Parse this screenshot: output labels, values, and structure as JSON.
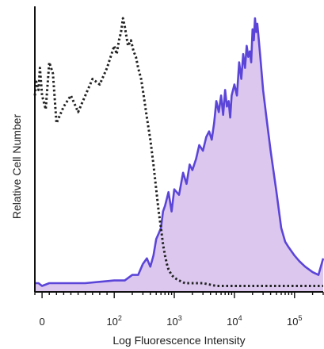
{
  "chart_data": {
    "type": "area",
    "title": "",
    "xlabel": "Log Fluorescence Intensity",
    "ylabel": "Relative Cell Number",
    "x_scale": "biexponential",
    "xlim": [
      -10,
      300000
    ],
    "ylim": [
      0,
      1
    ],
    "x_tick_labels": [
      {
        "label": "0",
        "value": 0
      },
      {
        "label": "10",
        "sup": "2",
        "value": 100
      },
      {
        "label": "10",
        "sup": "3",
        "value": 1000
      },
      {
        "label": "10",
        "sup": "4",
        "value": 10000
      },
      {
        "label": "10",
        "sup": "5",
        "value": 100000
      }
    ],
    "grid": false,
    "legend": "none",
    "series": [
      {
        "style": "solid",
        "fill": true,
        "color": "#5b45d8",
        "fill_color": "#dcc8ef",
        "x": [
          -10,
          -5,
          0,
          10,
          30,
          60,
          100,
          150,
          200,
          250,
          300,
          350,
          400,
          450,
          500,
          550,
          600,
          650,
          700,
          800,
          900,
          1000,
          1200,
          1400,
          1600,
          1800,
          2000,
          2300,
          2600,
          3000,
          3400,
          3800,
          4200,
          4600,
          5000,
          5500,
          6000,
          6500,
          7000,
          7500,
          8000,
          8500,
          9000,
          10000,
          11000,
          12000,
          13000,
          14000,
          15000,
          16000,
          17000,
          18000,
          19000,
          20000,
          21000,
          22000,
          23000,
          24000,
          25000,
          27000,
          30000,
          35000,
          40000,
          50000,
          60000,
          70000,
          80000,
          100000,
          120000,
          150000,
          200000,
          250000,
          300000
        ],
        "y": [
          0.02,
          0.02,
          0.01,
          0.02,
          0.02,
          0.02,
          0.03,
          0.03,
          0.05,
          0.05,
          0.09,
          0.11,
          0.08,
          0.12,
          0.18,
          0.2,
          0.22,
          0.28,
          0.3,
          0.35,
          0.28,
          0.36,
          0.34,
          0.42,
          0.38,
          0.45,
          0.43,
          0.47,
          0.52,
          0.5,
          0.55,
          0.57,
          0.54,
          0.6,
          0.68,
          0.64,
          0.7,
          0.63,
          0.72,
          0.66,
          0.68,
          0.62,
          0.7,
          0.74,
          0.7,
          0.82,
          0.76,
          0.85,
          0.8,
          0.88,
          0.84,
          0.86,
          0.82,
          0.94,
          0.9,
          0.98,
          0.93,
          0.96,
          0.92,
          0.84,
          0.72,
          0.6,
          0.5,
          0.35,
          0.22,
          0.17,
          0.15,
          0.12,
          0.1,
          0.08,
          0.06,
          0.05,
          0.11
        ]
      },
      {
        "style": "dotted",
        "fill": false,
        "color": "#222222",
        "x": [
          -10,
          -8,
          -5,
          -3,
          0,
          5,
          10,
          15,
          20,
          30,
          40,
          50,
          60,
          70,
          80,
          90,
          100,
          110,
          120,
          130,
          140,
          150,
          170,
          190,
          210,
          230,
          250,
          280,
          310,
          350,
          400,
          450,
          500,
          550,
          600,
          650,
          700,
          750,
          800,
          900,
          1000,
          1200,
          1500,
          2000,
          3000,
          5000,
          10000,
          20000,
          50000,
          100000,
          300000
        ],
        "y": [
          0.7,
          0.75,
          0.72,
          0.8,
          0.7,
          0.65,
          0.82,
          0.78,
          0.6,
          0.66,
          0.7,
          0.64,
          0.7,
          0.76,
          0.74,
          0.8,
          0.88,
          0.85,
          0.9,
          0.93,
          0.98,
          0.95,
          0.88,
          0.9,
          0.86,
          0.84,
          0.8,
          0.76,
          0.7,
          0.62,
          0.54,
          0.45,
          0.36,
          0.28,
          0.22,
          0.16,
          0.12,
          0.09,
          0.07,
          0.05,
          0.04,
          0.03,
          0.02,
          0.02,
          0.02,
          0.01,
          0.01,
          0.01,
          0.01,
          0.01,
          0.01
        ]
      }
    ]
  }
}
